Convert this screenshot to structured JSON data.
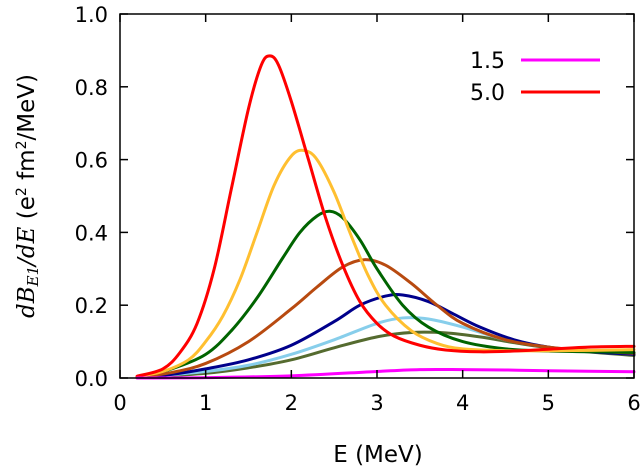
{
  "chart_data": {
    "type": "line",
    "title": "",
    "xlabel": "E (MeV)",
    "ylabel": {
      "d1": "dB",
      "sub": "E1",
      "d2": "/dE",
      "units_pre": " (e",
      "units_sup": "2",
      "units_mid": " fm",
      "units_sup2": "2",
      "units_post": "/MeV)"
    },
    "xlim": [
      0,
      6
    ],
    "ylim": [
      0,
      1.0
    ],
    "xticks": [
      "0",
      "1",
      "2",
      "3",
      "4",
      "5",
      "6"
    ],
    "yticks": [
      "0.0",
      "0.2",
      "0.4",
      "0.6",
      "0.8",
      "1.0"
    ],
    "grid": false,
    "legend_position": "top-right",
    "series": [
      {
        "name": "1.5",
        "color": "#ff00ff",
        "x": [
          0.2,
          1,
          2,
          3,
          3.5,
          4,
          4.5,
          5,
          6
        ],
        "y": [
          0.0,
          0.001,
          0.006,
          0.018,
          0.023,
          0.023,
          0.022,
          0.02,
          0.017
        ]
      },
      {
        "name": "5.0",
        "color": "#ff0000",
        "x": [
          0.2,
          0.5,
          0.7,
          0.9,
          1.1,
          1.3,
          1.5,
          1.65,
          1.75,
          1.85,
          2.0,
          2.2,
          2.4,
          2.6,
          2.8,
          3.0,
          3.2,
          3.5,
          3.8,
          4.2,
          4.6,
          5.0,
          5.5,
          6.0
        ],
        "y": [
          0.005,
          0.025,
          0.07,
          0.15,
          0.3,
          0.52,
          0.74,
          0.86,
          0.885,
          0.86,
          0.76,
          0.6,
          0.44,
          0.31,
          0.21,
          0.15,
          0.115,
          0.09,
          0.077,
          0.072,
          0.074,
          0.079,
          0.085,
          0.087
        ]
      },
      {
        "name": "",
        "color": "#ffbf30",
        "x": [
          0.2,
          0.5,
          0.8,
          1.0,
          1.2,
          1.4,
          1.6,
          1.8,
          2.0,
          2.15,
          2.3,
          2.5,
          2.7,
          2.9,
          3.1,
          3.4,
          3.7,
          4.0,
          4.5,
          5.0,
          5.5,
          6.0
        ],
        "y": [
          0.004,
          0.018,
          0.05,
          0.1,
          0.17,
          0.27,
          0.4,
          0.53,
          0.61,
          0.625,
          0.6,
          0.51,
          0.39,
          0.28,
          0.2,
          0.13,
          0.095,
          0.08,
          0.075,
          0.075,
          0.076,
          0.078
        ]
      },
      {
        "name": "",
        "color": "#006400",
        "x": [
          0.2,
          0.6,
          1.0,
          1.3,
          1.6,
          1.9,
          2.1,
          2.3,
          2.45,
          2.6,
          2.8,
          3.0,
          3.3,
          3.6,
          4.0,
          4.5,
          5.0,
          5.5,
          6.0
        ],
        "y": [
          0.003,
          0.025,
          0.065,
          0.13,
          0.22,
          0.33,
          0.4,
          0.445,
          0.458,
          0.44,
          0.38,
          0.3,
          0.2,
          0.14,
          0.1,
          0.08,
          0.074,
          0.072,
          0.07
        ]
      },
      {
        "name": "",
        "color": "#b84a10",
        "x": [
          0.2,
          0.6,
          1.0,
          1.5,
          2.0,
          2.3,
          2.6,
          2.85,
          3.1,
          3.4,
          3.7,
          4.0,
          4.5,
          5.0,
          5.5,
          6.0
        ],
        "y": [
          0.002,
          0.015,
          0.04,
          0.1,
          0.19,
          0.25,
          0.305,
          0.325,
          0.31,
          0.26,
          0.2,
          0.15,
          0.105,
          0.085,
          0.075,
          0.068
        ]
      },
      {
        "name": "",
        "color": "#00008b",
        "x": [
          0.2,
          0.6,
          1.0,
          1.5,
          2.0,
          2.5,
          2.8,
          3.1,
          3.3,
          3.6,
          3.9,
          4.2,
          4.6,
          5.0,
          5.5,
          6.0
        ],
        "y": [
          0.002,
          0.01,
          0.025,
          0.05,
          0.09,
          0.155,
          0.2,
          0.225,
          0.228,
          0.21,
          0.175,
          0.14,
          0.105,
          0.085,
          0.072,
          0.065
        ]
      },
      {
        "name": "",
        "color": "#87ceeb",
        "x": [
          0.2,
          1.0,
          1.5,
          2.0,
          2.5,
          3.0,
          3.3,
          3.6,
          4.0,
          4.5,
          5.0,
          5.5,
          6.0
        ],
        "y": [
          0.001,
          0.018,
          0.035,
          0.065,
          0.105,
          0.15,
          0.165,
          0.162,
          0.14,
          0.105,
          0.085,
          0.073,
          0.066
        ]
      },
      {
        "name": "",
        "color": "#556b2f",
        "x": [
          0.2,
          1.0,
          1.5,
          2.0,
          2.5,
          3.0,
          3.4,
          3.8,
          4.2,
          4.6,
          5.0,
          5.5,
          6.0
        ],
        "y": [
          0.001,
          0.013,
          0.028,
          0.05,
          0.083,
          0.113,
          0.125,
          0.124,
          0.113,
          0.097,
          0.083,
          0.071,
          0.062
        ]
      }
    ]
  }
}
